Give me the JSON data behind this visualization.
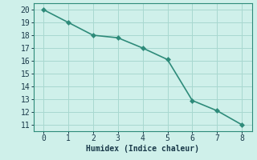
{
  "x": [
    0,
    1,
    2,
    3,
    4,
    5,
    6,
    7,
    8
  ],
  "y": [
    20,
    19,
    18,
    17.8,
    17,
    16.1,
    12.9,
    12.1,
    11
  ],
  "line_color": "#2e8b7a",
  "marker": "D",
  "marker_size": 3,
  "background_color": "#cff0ea",
  "grid_color": "#a8d8d0",
  "xlabel": "Humidex (Indice chaleur)",
  "xlabel_fontsize": 7,
  "xlim": [
    -0.4,
    8.4
  ],
  "ylim": [
    10.5,
    20.5
  ],
  "xticks": [
    0,
    1,
    2,
    3,
    4,
    5,
    6,
    7,
    8
  ],
  "yticks": [
    11,
    12,
    13,
    14,
    15,
    16,
    17,
    18,
    19,
    20
  ],
  "tick_fontsize": 7,
  "tick_color": "#1a3a4a",
  "line_width": 1.2,
  "spine_color": "#2e8b7a"
}
